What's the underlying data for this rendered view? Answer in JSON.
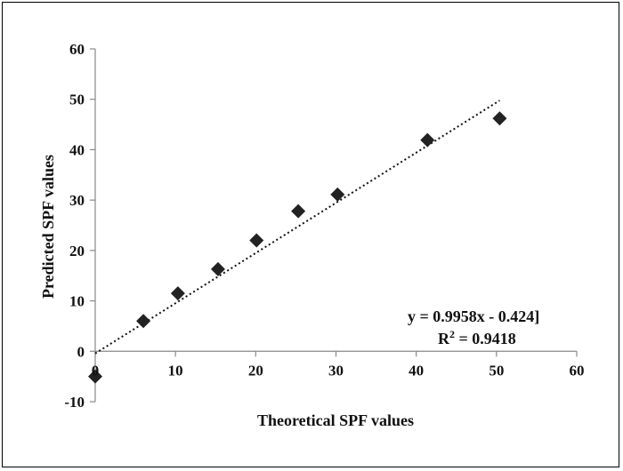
{
  "chart_data": {
    "type": "scatter",
    "title": "",
    "xlabel": "Theoretical SPF values",
    "ylabel": "Predicted SPF values",
    "xlim": [
      0,
      60
    ],
    "ylim": [
      -10,
      60
    ],
    "xticks": [
      0,
      10,
      20,
      30,
      40,
      50,
      60
    ],
    "yticks": [
      -10,
      0,
      10,
      20,
      30,
      40,
      50,
      60
    ],
    "grid": false,
    "legend": "none",
    "series": [
      {
        "marker": "diamond",
        "color": "#222222",
        "points": [
          {
            "x": 0,
            "y": -5
          },
          {
            "x": 6,
            "y": 6
          },
          {
            "x": 10.3,
            "y": 11.5
          },
          {
            "x": 15.3,
            "y": 16.3
          },
          {
            "x": 20.1,
            "y": 22
          },
          {
            "x": 25.3,
            "y": 27.8
          },
          {
            "x": 30.2,
            "y": 31.1
          },
          {
            "x": 41.4,
            "y": 41.9
          },
          {
            "x": 50.4,
            "y": 46.2
          }
        ]
      }
    ],
    "trendline": {
      "style": "dotted",
      "slope": 0.9958,
      "intercept": -0.424,
      "x_range": [
        0,
        50.4
      ]
    },
    "annotations": {
      "equation": "y = 0.9958x - 0.424]",
      "r2_prefix": "R",
      "r2_superscript": "2",
      "r2_suffix": " = 0.9418"
    }
  }
}
